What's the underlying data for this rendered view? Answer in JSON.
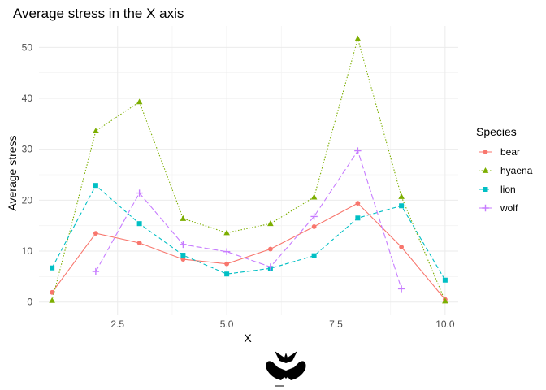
{
  "chart_data": {
    "type": "line",
    "title": "Average stress in the X axis",
    "xlabel": "X",
    "ylabel": "Average stress",
    "xlim": [
      0.7,
      10.3
    ],
    "ylim": [
      -2.6,
      54.2
    ],
    "xticks": [
      2.5,
      5.0,
      7.5,
      10.0
    ],
    "xtick_labels": [
      "2.5",
      "5.0",
      "7.5",
      "10.0"
    ],
    "xminor": [
      1.25,
      3.75,
      6.25,
      8.75
    ],
    "yticks": [
      0,
      10,
      20,
      30,
      40,
      50
    ],
    "ytick_labels": [
      "0",
      "10",
      "20",
      "30",
      "40",
      "50"
    ],
    "yminor": [
      5,
      15,
      25,
      35,
      45
    ],
    "grid": true,
    "legend_title": "Species",
    "legend_position": "right",
    "series": [
      {
        "name": "bear",
        "color": "#F8766D",
        "marker": "circle",
        "dash": "none",
        "x": [
          1,
          2,
          3,
          4,
          5,
          6,
          7,
          8,
          9,
          10
        ],
        "y": [
          1.9,
          13.5,
          11.6,
          8.4,
          7.5,
          10.4,
          14.8,
          19.4,
          10.8,
          0.5
        ]
      },
      {
        "name": "hyaena",
        "color": "#7CAE00",
        "marker": "triangle",
        "dash": "dotted",
        "x": [
          1,
          2,
          3,
          4,
          5,
          6,
          7,
          8,
          9,
          10
        ],
        "y": [
          0.3,
          33.6,
          39.3,
          16.4,
          13.6,
          15.4,
          20.6,
          51.7,
          20.7,
          0.2
        ]
      },
      {
        "name": "lion",
        "color": "#00BFC4",
        "marker": "square",
        "dash": "dashed",
        "x": [
          1,
          2,
          3,
          4,
          5,
          6,
          7,
          8,
          9,
          10
        ],
        "y": [
          6.7,
          22.9,
          15.4,
          9.2,
          5.5,
          6.6,
          9.1,
          16.5,
          18.9,
          4.3
        ]
      },
      {
        "name": "wolf",
        "color": "#C77CFF",
        "marker": "plus",
        "dash": "longdash",
        "x": [
          2,
          3,
          4,
          5,
          6,
          7,
          8,
          9
        ],
        "y": [
          6.0,
          21.4,
          11.3,
          9.9,
          6.9,
          16.8,
          29.7,
          2.6
        ]
      }
    ]
  }
}
